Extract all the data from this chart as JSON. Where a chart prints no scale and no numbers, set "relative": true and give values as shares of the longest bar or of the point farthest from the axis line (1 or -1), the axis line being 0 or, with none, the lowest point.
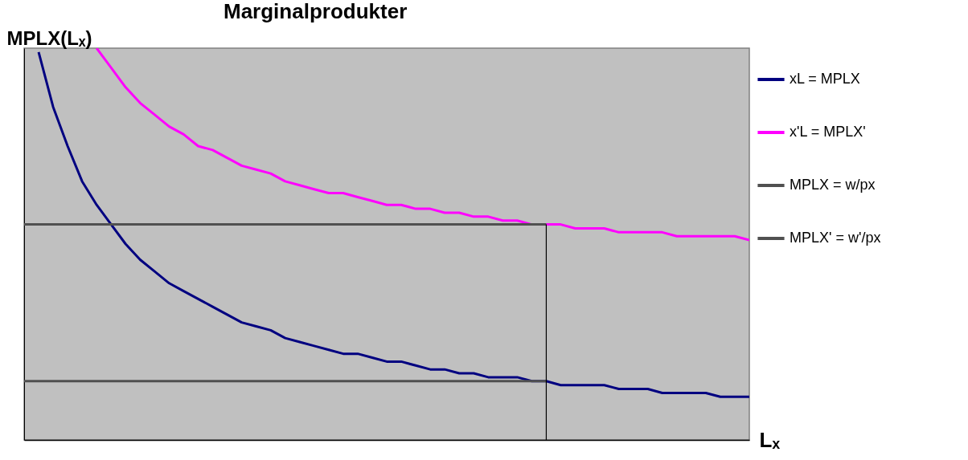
{
  "chart_data": {
    "type": "line",
    "title": "Marginalprodukter",
    "ylabel": "MPLX(Lₓ)",
    "xlabel": "Lₓ",
    "relative": true,
    "grid": false,
    "legend": "right",
    "tick_labels": false,
    "marker": "none",
    "line_style": "solid",
    "categories": [
      null,
      null,
      null,
      null,
      null,
      null,
      null,
      null,
      null,
      null,
      null,
      null,
      null,
      null,
      null,
      null,
      null,
      null,
      null,
      null,
      null,
      null,
      null,
      null,
      null,
      null,
      null,
      null,
      null,
      null,
      null,
      null,
      null,
      null,
      null,
      null,
      null,
      null,
      null,
      null,
      null,
      null,
      null,
      null,
      null,
      null,
      null,
      null,
      null,
      null,
      null
    ],
    "series": [
      {
        "name": "xL = MPLX",
        "color": "#000080",
        "values": [
          null,
          0.99,
          0.85,
          0.75,
          0.66,
          0.6,
          0.55,
          0.5,
          0.46,
          0.43,
          0.4,
          0.38,
          0.36,
          0.34,
          0.32,
          0.3,
          0.29,
          0.28,
          0.26,
          0.25,
          0.24,
          0.23,
          0.22,
          0.22,
          0.21,
          0.2,
          0.2,
          0.19,
          0.18,
          0.18,
          0.17,
          0.17,
          0.16,
          0.16,
          0.16,
          0.15,
          0.15,
          0.14,
          0.14,
          0.14,
          0.14,
          0.13,
          0.13,
          0.13,
          0.12,
          0.12,
          0.12,
          0.12,
          0.11,
          0.11,
          0.11
        ]
      },
      {
        "name": "x'L = MPLX'",
        "color": "#ff00ff",
        "values": [
          null,
          null,
          null,
          null,
          null,
          1.0,
          0.95,
          0.9,
          0.86,
          0.83,
          0.8,
          0.78,
          0.75,
          0.74,
          0.72,
          0.7,
          0.69,
          0.68,
          0.66,
          0.65,
          0.64,
          0.63,
          0.63,
          0.62,
          0.61,
          0.6,
          0.6,
          0.59,
          0.59,
          0.58,
          0.58,
          0.57,
          0.57,
          0.56,
          0.56,
          0.55,
          0.55,
          0.55,
          0.54,
          0.54,
          0.54,
          0.53,
          0.53,
          0.53,
          0.53,
          0.52,
          0.52,
          0.52,
          0.52,
          0.52,
          0.51
        ]
      },
      {
        "name": "MPLX = w/px",
        "color": "#505050",
        "values": [
          0.15,
          0.15,
          0.15,
          0.15,
          0.15,
          0.15,
          0.15,
          0.15,
          0.15,
          0.15,
          0.15,
          0.15,
          0.15,
          0.15,
          0.15,
          0.15,
          0.15,
          0.15,
          0.15,
          0.15,
          0.15,
          0.15,
          0.15,
          0.15,
          0.15,
          0.15,
          0.15,
          0.15,
          0.15,
          0.15,
          0.15,
          0.15,
          0.15,
          0.15,
          0.15,
          0.15,
          0.15,
          null,
          null,
          null,
          null,
          null,
          null,
          null,
          null,
          null,
          null,
          null,
          null,
          null,
          null
        ]
      },
      {
        "name": "MPLX' = w'/px",
        "color": "#505050",
        "values": [
          0.55,
          0.55,
          0.55,
          0.55,
          0.55,
          0.55,
          0.55,
          0.55,
          0.55,
          0.55,
          0.55,
          0.55,
          0.55,
          0.55,
          0.55,
          0.55,
          0.55,
          0.55,
          0.55,
          0.55,
          0.55,
          0.55,
          0.55,
          0.55,
          0.55,
          0.55,
          0.55,
          0.55,
          0.55,
          0.55,
          0.55,
          0.55,
          0.55,
          0.55,
          0.55,
          0.55,
          0.55,
          null,
          null,
          null,
          null,
          null,
          null,
          null,
          null,
          null,
          null,
          null,
          null,
          null,
          null
        ]
      }
    ]
  }
}
